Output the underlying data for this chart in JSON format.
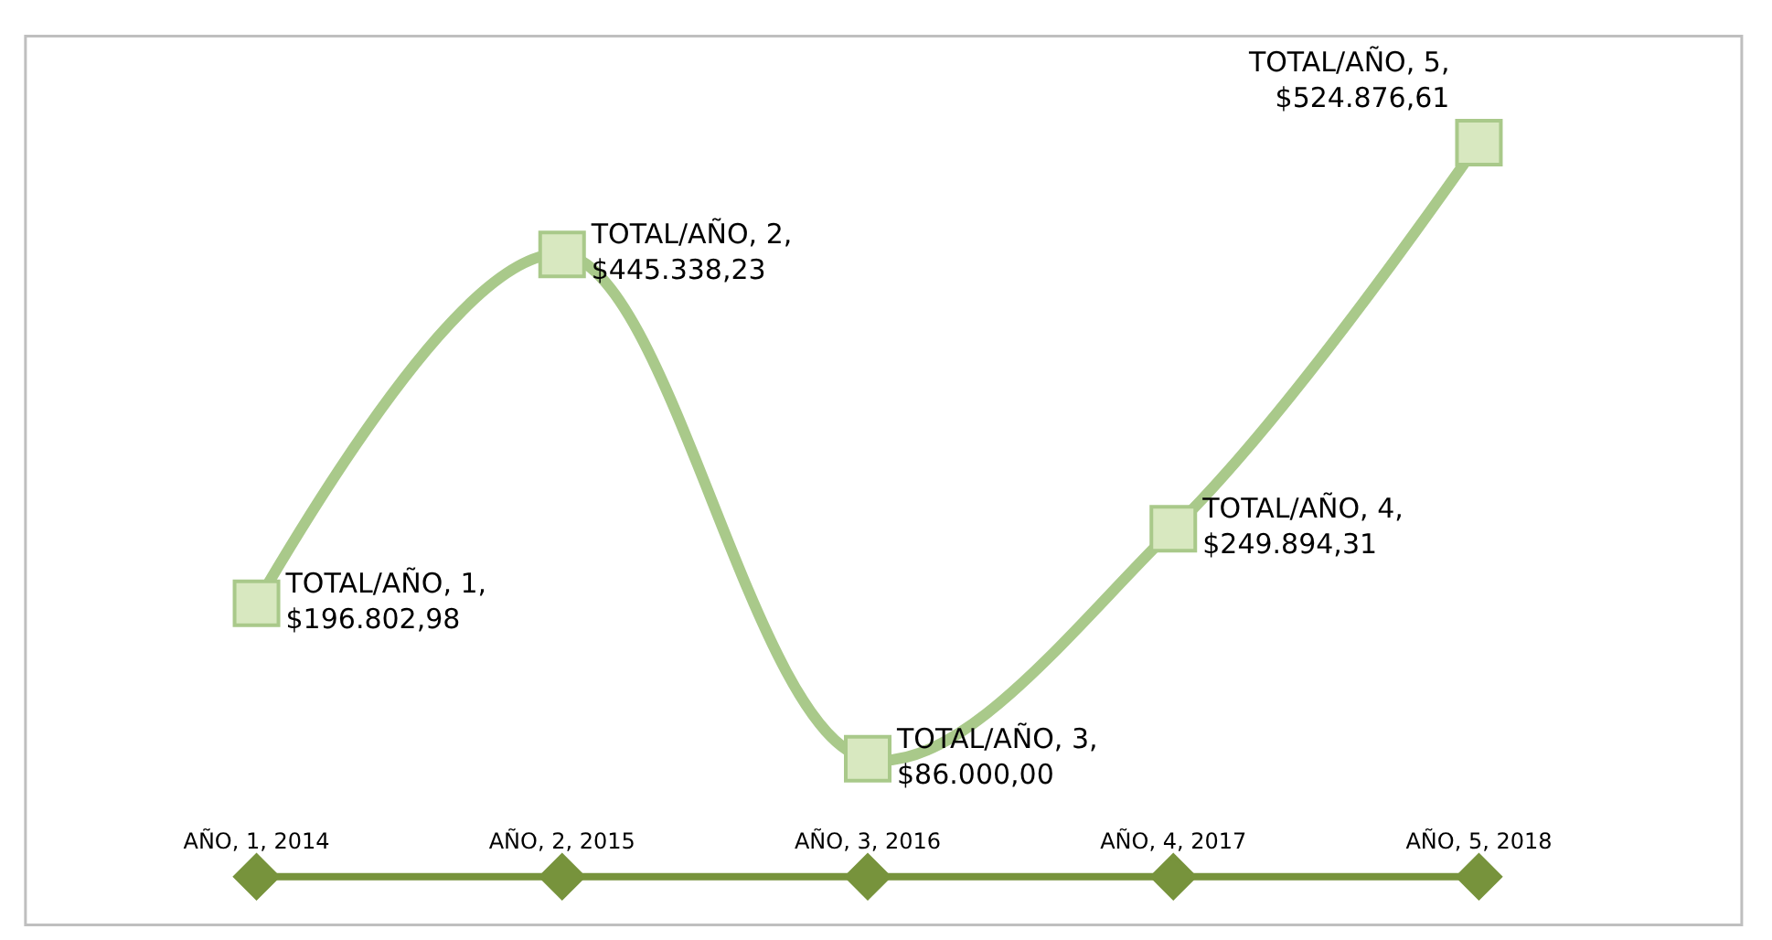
{
  "chart_data": {
    "type": "line",
    "categories": [
      null,
      null,
      null,
      null,
      null
    ],
    "series": [
      {
        "color": "#a9c98a",
        "marker": "square",
        "values": [
          196802.98,
          445338.23,
          86000.0,
          249894.31,
          524876.61
        ],
        "value_labels": [
          "TOTAL/AÑO, 1, $196.802,98",
          "TOTAL/AÑO, 2, $445.338,23",
          "TOTAL/AÑO, 3, $86.000,00",
          "TOTAL/AÑO, 4, $249.894,31",
          "TOTAL/AÑO, 5, $524.876,61"
        ]
      },
      {
        "color": "#77933c",
        "marker": "diamond",
        "values": [
          2014,
          2015,
          2016,
          2017,
          2018
        ],
        "value_labels": [
          "AÑO, 1, 2014",
          "AÑO, 2, 2015",
          "AÑO, 3, 2016",
          "AÑO, 4, 2017",
          "AÑO, 5, 2018"
        ]
      }
    ],
    "legend": false
  }
}
